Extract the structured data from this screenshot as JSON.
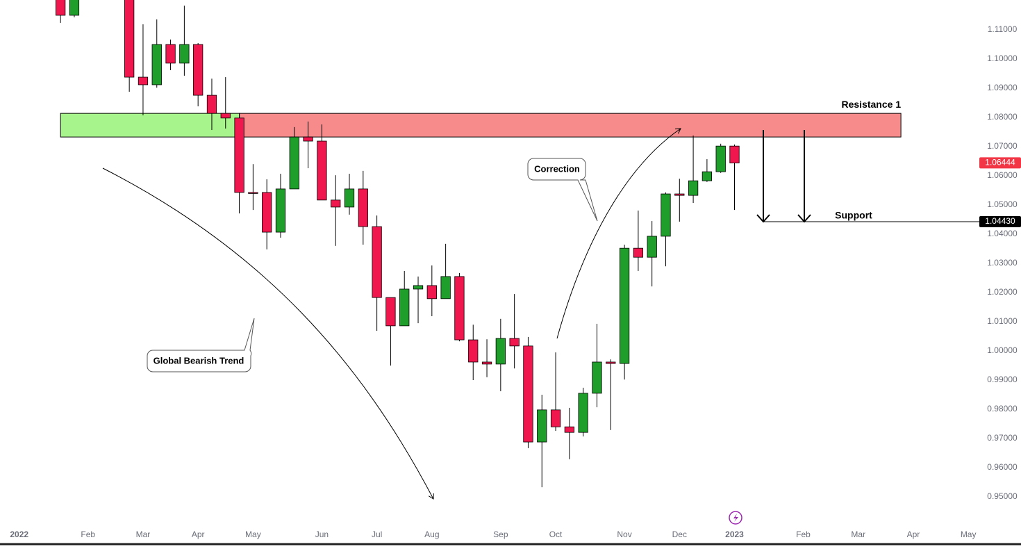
{
  "chart_data": {
    "type": "candlestick",
    "up_color": "#1f9e2b",
    "down_color": "#f0174f",
    "x": [
      3,
      4,
      8,
      9,
      10,
      11,
      12,
      13,
      14,
      15,
      16,
      17,
      18,
      19,
      20,
      21,
      22,
      23,
      24,
      25,
      26,
      27,
      28,
      29,
      30,
      31,
      32,
      33,
      34,
      35,
      36,
      37,
      38,
      39,
      40,
      41,
      42,
      43,
      44,
      45,
      46,
      47,
      48,
      49,
      50,
      51,
      52
    ],
    "open": [
      1.121,
      1.115,
      1.122,
      1.0938,
      1.0912,
      1.105,
      1.0986,
      1.105,
      1.0876,
      1.0814,
      1.0798,
      1.0543,
      1.0543,
      1.0407,
      1.0555,
      1.0733,
      1.0719,
      1.0517,
      1.0493,
      1.0555,
      1.0426,
      1.0183,
      1.0086,
      1.0212,
      1.0224,
      1.0179,
      1.0255,
      1.0038,
      0.9962,
      0.9955,
      1.0043,
      1.0017,
      0.9688,
      0.9798,
      0.974,
      0.9721,
      0.9855,
      0.9962,
      0.9957,
      1.0352,
      1.0321,
      1.0393,
      1.0538,
      1.0533,
      1.0583,
      1.0614,
      1.0702
    ],
    "high": [
      1.123,
      1.124,
      1.125,
      1.1119,
      1.1136,
      1.1067,
      1.1183,
      1.1055,
      1.0933,
      1.0938,
      1.0814,
      1.064,
      1.0588,
      1.0607,
      1.0767,
      1.0786,
      1.0776,
      1.0602,
      1.0607,
      1.0617,
      1.0464,
      1.0183,
      1.0274,
      1.0255,
      1.0293,
      1.0367,
      1.0267,
      1.009,
      1.004,
      1.011,
      1.0195,
      1.0048,
      0.985,
      0.9995,
      0.9805,
      0.9874,
      1.0093,
      0.9971,
      1.0364,
      1.0481,
      1.0445,
      1.0543,
      1.059,
      1.0738,
      1.0657,
      1.071,
      1.0707
    ],
    "low": [
      1.1124,
      1.1143,
      1.0888,
      1.0807,
      1.0902,
      1.0962,
      1.0943,
      1.0838,
      1.0757,
      1.0762,
      1.0471,
      1.0483,
      1.0348,
      1.0388,
      1.0555,
      1.0626,
      1.0517,
      1.036,
      1.0467,
      1.0364,
      1.0069,
      0.995,
      1.0086,
      1.0095,
      1.0119,
      1.0179,
      1.0033,
      0.99,
      0.991,
      0.9862,
      0.994,
      0.9667,
      0.9533,
      0.9726,
      0.9629,
      0.9707,
      0.9807,
      0.9729,
      0.9902,
      1.0274,
      1.0221,
      1.029,
      1.0443,
      1.0507,
      1.0579,
      1.061,
      1.0483
    ],
    "close": [
      1.115,
      1.122,
      1.0938,
      1.0912,
      1.105,
      1.0986,
      1.105,
      1.0876,
      1.0814,
      1.0798,
      1.0543,
      1.0541,
      1.0407,
      1.0555,
      1.0733,
      1.0719,
      1.0517,
      1.0493,
      1.0555,
      1.0426,
      1.0183,
      1.0086,
      1.0212,
      1.0224,
      1.0179,
      1.0255,
      1.0038,
      0.9962,
      0.9955,
      1.0043,
      1.0017,
      0.9688,
      0.9798,
      0.974,
      0.9721,
      0.9855,
      0.9962,
      0.9957,
      1.0352,
      1.0321,
      1.0393,
      1.0538,
      1.0533,
      1.0583,
      1.0614,
      1.0702,
      1.0644
    ],
    "xlim": [
      -1.4,
      69.8
    ],
    "xticks": [
      {
        "value": 0,
        "label": "2022"
      },
      {
        "value": 5,
        "label": "Feb"
      },
      {
        "value": 9,
        "label": "Mar"
      },
      {
        "value": 13,
        "label": "Apr"
      },
      {
        "value": 17,
        "label": "May"
      },
      {
        "value": 22,
        "label": "Jun"
      },
      {
        "value": 26,
        "label": "Jul"
      },
      {
        "value": 30,
        "label": "Aug"
      },
      {
        "value": 35,
        "label": "Sep"
      },
      {
        "value": 39,
        "label": "Oct"
      },
      {
        "value": 44,
        "label": "Nov"
      },
      {
        "value": 48,
        "label": "Dec"
      },
      {
        "value": 52,
        "label": "2023"
      },
      {
        "value": 57,
        "label": "Feb"
      },
      {
        "value": 61,
        "label": "Mar"
      },
      {
        "value": 65,
        "label": "Apr"
      },
      {
        "value": 69,
        "label": "May"
      }
    ],
    "ylim": [
      0.94,
      1.12
    ],
    "yticks": [
      {
        "value": 0.95,
        "label": "0.95000"
      },
      {
        "value": 0.96,
        "label": "0.96000"
      },
      {
        "value": 0.97,
        "label": "0.97000"
      },
      {
        "value": 0.98,
        "label": "0.98000"
      },
      {
        "value": 0.99,
        "label": "0.99000"
      },
      {
        "value": 1.0,
        "label": "1.00000"
      },
      {
        "value": 1.01,
        "label": "1.01000"
      },
      {
        "value": 1.02,
        "label": "1.02000"
      },
      {
        "value": 1.03,
        "label": "1.03000"
      },
      {
        "value": 1.04,
        "label": "1.04000"
      },
      {
        "value": 1.05,
        "label": "1.05000"
      },
      {
        "value": 1.06,
        "label": "1.06000"
      },
      {
        "value": 1.07,
        "label": "1.07000"
      },
      {
        "value": 1.08,
        "label": "1.08000"
      },
      {
        "value": 1.09,
        "label": "1.09000"
      },
      {
        "value": 1.1,
        "label": "1.10000"
      },
      {
        "value": 1.11,
        "label": "1.11000"
      }
    ],
    "zones": [
      {
        "x": [
          3,
          16
        ],
        "y": [
          1.0733,
          1.0814
        ],
        "color": "#a8f48c"
      },
      {
        "x": [
          16,
          64.1
        ],
        "y": [
          1.0733,
          1.0814
        ],
        "color": "#f78a8a",
        "label": "Resistance 1"
      }
    ],
    "support": {
      "label": "Support",
      "value": 1.0443,
      "value_label": "1.04430",
      "x_start": 54.1,
      "color": "#000000"
    },
    "last_price": {
      "value": 1.06444,
      "label": "1.06444",
      "color": "#f23645"
    },
    "annotations": [
      "Correction",
      "Global Bearish Trend"
    ]
  }
}
